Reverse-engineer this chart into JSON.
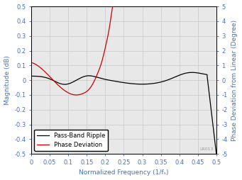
{
  "xlabel": "Normalized Frequency (1/fₛ)",
  "ylabel_left": "Magnitude (dB)",
  "ylabel_right": "Phase Deviation from Linear (Degree)",
  "xlim": [
    0,
    0.5
  ],
  "ylim_left": [
    -0.5,
    0.5
  ],
  "ylim_right": [
    -5,
    5
  ],
  "yticks_left": [
    -0.5,
    -0.4,
    -0.3,
    -0.2,
    -0.1,
    0.0,
    0.1,
    0.2,
    0.3,
    0.4,
    0.5
  ],
  "yticks_right": [
    -5,
    -4,
    -3,
    -2,
    -1,
    0,
    1,
    2,
    3,
    4,
    5
  ],
  "xticks": [
    0,
    0.05,
    0.1,
    0.15,
    0.2,
    0.25,
    0.3,
    0.35,
    0.4,
    0.45,
    0.5
  ],
  "legend_labels": [
    "Pass-Band Ripple",
    "Phase Deviation"
  ],
  "pass_band_color": "#000000",
  "phase_color": "#cc0000",
  "grid_color": "#c8c8c8",
  "background_color": "#e8e8e8",
  "label_color": "#4472c4",
  "tick_color": "#4472c4",
  "watermark": "LR013",
  "figsize": [
    3.41,
    2.54
  ],
  "dpi": 100
}
